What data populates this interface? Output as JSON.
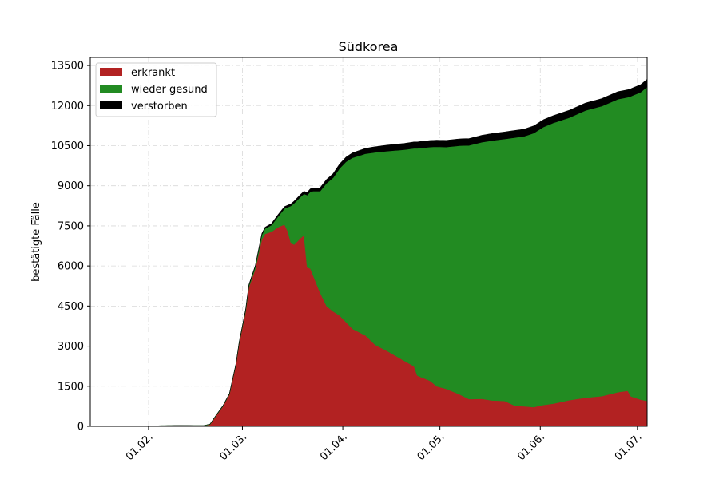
{
  "chart_data": {
    "type": "area",
    "stacked": true,
    "title": "Südkorea",
    "xlabel": "",
    "ylabel": "bestätigte Fälle",
    "xlim": [
      "2020-01-14",
      "2020-07-04"
    ],
    "ylim": [
      0,
      13800
    ],
    "grid": true,
    "legend_position": "top-left",
    "x_ticks": [
      {
        "date": "2020-02-01",
        "label": "01.02."
      },
      {
        "date": "2020-03-01",
        "label": "01.03."
      },
      {
        "date": "2020-04-01",
        "label": "01.04."
      },
      {
        "date": "2020-05-01",
        "label": "01.05."
      },
      {
        "date": "2020-06-01",
        "label": "01.06."
      },
      {
        "date": "2020-07-01",
        "label": "01.07."
      }
    ],
    "y_ticks": [
      0,
      1500,
      3000,
      4500,
      6000,
      7500,
      9000,
      10500,
      12000,
      13500
    ],
    "series": [
      {
        "name": "erkrankt",
        "color": "#b22222",
        "points": [
          [
            "2020-01-22",
            1
          ],
          [
            "2020-02-01",
            11
          ],
          [
            "2020-02-10",
            24
          ],
          [
            "2020-02-18",
            15
          ],
          [
            "2020-02-20",
            70
          ],
          [
            "2020-02-22",
            420
          ],
          [
            "2020-02-24",
            750
          ],
          [
            "2020-02-26",
            1200
          ],
          [
            "2020-02-28",
            2300
          ],
          [
            "2020-02-29",
            3100
          ],
          [
            "2020-03-01",
            3700
          ],
          [
            "2020-03-02",
            4300
          ],
          [
            "2020-03-03",
            5200
          ],
          [
            "2020-03-05",
            5900
          ],
          [
            "2020-03-07",
            7000
          ],
          [
            "2020-03-08",
            7200
          ],
          [
            "2020-03-10",
            7280
          ],
          [
            "2020-03-12",
            7450
          ],
          [
            "2020-03-14",
            7550
          ],
          [
            "2020-03-15",
            7300
          ],
          [
            "2020-03-16",
            6850
          ],
          [
            "2020-03-17",
            6800
          ],
          [
            "2020-03-19",
            7050
          ],
          [
            "2020-03-20",
            7150
          ],
          [
            "2020-03-21",
            5950
          ],
          [
            "2020-03-22",
            5900
          ],
          [
            "2020-03-23",
            5600
          ],
          [
            "2020-03-25",
            5000
          ],
          [
            "2020-03-27",
            4500
          ],
          [
            "2020-03-29",
            4300
          ],
          [
            "2020-03-31",
            4150
          ],
          [
            "2020-04-02",
            3900
          ],
          [
            "2020-04-04",
            3650
          ],
          [
            "2020-04-08",
            3400
          ],
          [
            "2020-04-11",
            3050
          ],
          [
            "2020-04-15",
            2800
          ],
          [
            "2020-04-20",
            2450
          ],
          [
            "2020-04-23",
            2250
          ],
          [
            "2020-04-24",
            1900
          ],
          [
            "2020-04-28",
            1700
          ],
          [
            "2020-04-30",
            1500
          ],
          [
            "2020-05-03",
            1400
          ],
          [
            "2020-05-07",
            1200
          ],
          [
            "2020-05-10",
            1020
          ],
          [
            "2020-05-14",
            1030
          ],
          [
            "2020-05-17",
            970
          ],
          [
            "2020-05-21",
            950
          ],
          [
            "2020-05-24",
            780
          ],
          [
            "2020-05-27",
            750
          ],
          [
            "2020-05-30",
            720
          ],
          [
            "2020-06-02",
            800
          ],
          [
            "2020-06-05",
            850
          ],
          [
            "2020-06-10",
            980
          ],
          [
            "2020-06-15",
            1070
          ],
          [
            "2020-06-20",
            1130
          ],
          [
            "2020-06-25",
            1280
          ],
          [
            "2020-06-28",
            1330
          ],
          [
            "2020-06-29",
            1120
          ],
          [
            "2020-07-02",
            1000
          ],
          [
            "2020-07-04",
            950
          ]
        ]
      },
      {
        "name": "wieder gesund",
        "color": "#228b22",
        "points": [
          [
            "2020-01-22",
            0
          ],
          [
            "2020-02-18",
            12
          ],
          [
            "2020-02-28",
            22
          ],
          [
            "2020-03-05",
            90
          ],
          [
            "2020-03-08",
            200
          ],
          [
            "2020-03-10",
            250
          ],
          [
            "2020-03-12",
            400
          ],
          [
            "2020-03-14",
            600
          ],
          [
            "2020-03-15",
            900
          ],
          [
            "2020-03-16",
            1400
          ],
          [
            "2020-03-17",
            1550
          ],
          [
            "2020-03-19",
            1540
          ],
          [
            "2020-03-20",
            1550
          ],
          [
            "2020-03-21",
            2700
          ],
          [
            "2020-03-22",
            2880
          ],
          [
            "2020-03-23",
            3200
          ],
          [
            "2020-03-25",
            3800
          ],
          [
            "2020-03-27",
            4600
          ],
          [
            "2020-03-29",
            5000
          ],
          [
            "2020-03-31",
            5500
          ],
          [
            "2020-04-02",
            6000
          ],
          [
            "2020-04-04",
            6400
          ],
          [
            "2020-04-08",
            6800
          ],
          [
            "2020-04-11",
            7200
          ],
          [
            "2020-04-15",
            7500
          ],
          [
            "2020-04-20",
            7900
          ],
          [
            "2020-04-23",
            8150
          ],
          [
            "2020-04-24",
            8500
          ],
          [
            "2020-04-28",
            8750
          ],
          [
            "2020-04-30",
            8960
          ],
          [
            "2020-05-03",
            9050
          ],
          [
            "2020-05-07",
            9300
          ],
          [
            "2020-05-10",
            9490
          ],
          [
            "2020-05-14",
            9600
          ],
          [
            "2020-05-17",
            9720
          ],
          [
            "2020-05-21",
            9800
          ],
          [
            "2020-05-24",
            10020
          ],
          [
            "2020-05-27",
            10100
          ],
          [
            "2020-05-30",
            10250
          ],
          [
            "2020-06-02",
            10400
          ],
          [
            "2020-06-05",
            10500
          ],
          [
            "2020-06-10",
            10570
          ],
          [
            "2020-06-15",
            10750
          ],
          [
            "2020-06-20",
            10850
          ],
          [
            "2020-06-25",
            10960
          ],
          [
            "2020-06-28",
            10980
          ],
          [
            "2020-06-29",
            11230
          ],
          [
            "2020-07-02",
            11500
          ],
          [
            "2020-07-04",
            11750
          ]
        ]
      },
      {
        "name": "verstorben",
        "color": "#000000",
        "points": [
          [
            "2020-01-22",
            0
          ],
          [
            "2020-02-20",
            1
          ],
          [
            "2020-02-24",
            8
          ],
          [
            "2020-02-28",
            16
          ],
          [
            "2020-03-02",
            28
          ],
          [
            "2020-03-05",
            35
          ],
          [
            "2020-03-08",
            50
          ],
          [
            "2020-03-12",
            67
          ],
          [
            "2020-03-16",
            75
          ],
          [
            "2020-03-20",
            94
          ],
          [
            "2020-03-25",
            126
          ],
          [
            "2020-03-31",
            162
          ],
          [
            "2020-04-08",
            200
          ],
          [
            "2020-04-15",
            225
          ],
          [
            "2020-04-23",
            240
          ],
          [
            "2020-04-30",
            247
          ],
          [
            "2020-05-10",
            256
          ],
          [
            "2020-05-20",
            264
          ],
          [
            "2020-05-31",
            270
          ],
          [
            "2020-06-10",
            276
          ],
          [
            "2020-06-20",
            280
          ],
          [
            "2020-06-30",
            282
          ],
          [
            "2020-07-04",
            283
          ]
        ]
      }
    ]
  }
}
